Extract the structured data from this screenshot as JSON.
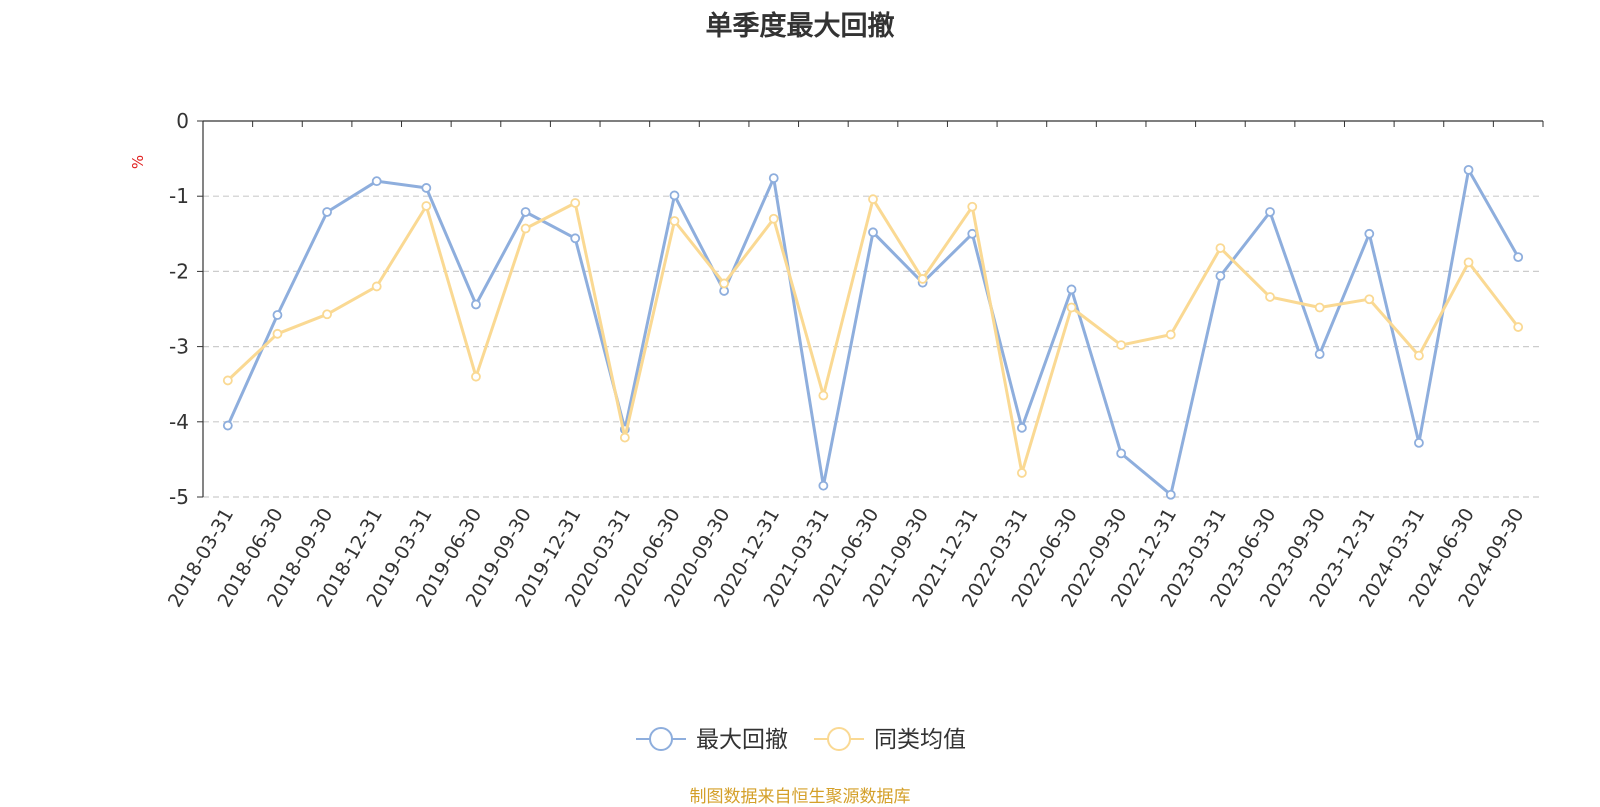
{
  "colors": {
    "series_1": "#8eaedd",
    "series_2": "#fad993",
    "unit_label": "#e02020",
    "source_note": "#d4a02a",
    "axis": "#333333",
    "grid": "#cccccc"
  },
  "chart_data": {
    "type": "line",
    "title": "单季度最大回撤",
    "ylabel": "%",
    "xlabel": "",
    "ylim": [
      -5,
      0
    ],
    "yticks": [
      0,
      -1,
      -2,
      -3,
      -4,
      -5
    ],
    "grid": "horizontal dashed",
    "legend_position": "bottom-center",
    "categories": [
      "2018-03-31",
      "2018-06-30",
      "2018-09-30",
      "2018-12-31",
      "2019-03-31",
      "2019-06-30",
      "2019-09-30",
      "2019-12-31",
      "2020-03-31",
      "2020-06-30",
      "2020-09-30",
      "2020-12-31",
      "2021-03-31",
      "2021-06-30",
      "2021-09-30",
      "2021-12-31",
      "2022-03-31",
      "2022-06-30",
      "2022-09-30",
      "2022-12-31",
      "2023-03-31",
      "2023-06-30",
      "2023-09-30",
      "2023-12-31",
      "2024-03-31",
      "2024-06-30",
      "2024-09-30"
    ],
    "series": [
      {
        "name": "最大回撤",
        "values": [
          -4.05,
          -2.58,
          -1.21,
          -0.8,
          -0.89,
          -2.44,
          -1.21,
          -1.56,
          -4.1,
          -0.99,
          -2.26,
          -0.76,
          -4.85,
          -1.48,
          -2.15,
          -1.5,
          -4.08,
          -2.24,
          -4.42,
          -4.97,
          -2.06,
          -1.21,
          -3.1,
          -1.5,
          -4.28,
          -0.65,
          -1.81
        ]
      },
      {
        "name": "同类均值",
        "values": [
          -3.45,
          -2.83,
          -2.57,
          -2.2,
          -1.13,
          -3.4,
          -1.43,
          -1.09,
          -4.21,
          -1.33,
          -2.16,
          -1.3,
          -3.65,
          -1.04,
          -2.1,
          -1.14,
          -4.68,
          -2.48,
          -2.98,
          -2.84,
          -1.69,
          -2.34,
          -2.48,
          -2.37,
          -3.12,
          -1.88,
          -2.74
        ]
      }
    ]
  },
  "source_note": "制图数据来自恒生聚源数据库"
}
